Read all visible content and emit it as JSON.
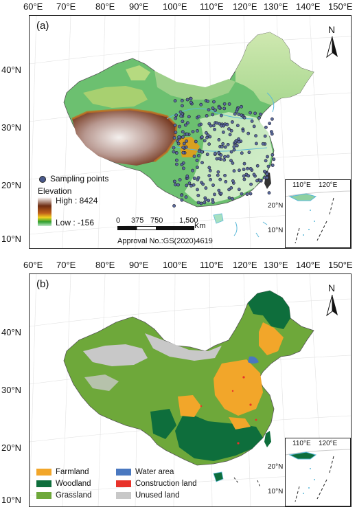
{
  "longitude_labels": [
    "60°E",
    "70°E",
    "80°E",
    "90°E",
    "100°E",
    "110°E",
    "120°E",
    "130°E",
    "140°E",
    "150°E"
  ],
  "latitude_labels": [
    "40°N",
    "30°N",
    "20°N",
    "10°N"
  ],
  "panel_a": {
    "label": "(a)",
    "north_letter": "N",
    "sampling_points_label": "Sampling points",
    "elevation_title": "Elevation",
    "elevation_high": "High : 8424",
    "elevation_low": "Low : -156",
    "scale_ticks": [
      "0",
      "375",
      "750",
      "1,500"
    ],
    "scale_unit": "Km",
    "approval": "Approval No.:GS(2020)4619",
    "inset_lon_labels": [
      "110°E",
      "120°E"
    ],
    "inset_lat_labels": [
      "20°N",
      "10°N"
    ],
    "colors": {
      "high": "#ffffff",
      "mid_high": "#6e2d12",
      "mid": "#d8a020",
      "low_green": "#2f9f2f",
      "lowest": "#bfe8c8",
      "points": "#4a5a8c"
    }
  },
  "panel_b": {
    "label": "(b)",
    "north_letter": "N",
    "inset_lon_labels": [
      "110°E",
      "120°E"
    ],
    "inset_lat_labels": [
      "20°N",
      "10°N"
    ],
    "legend": [
      {
        "label": "Farmland",
        "color": "#f2a62a"
      },
      {
        "label": "Water area",
        "color": "#4a78c0"
      },
      {
        "label": "Woodland",
        "color": "#0e6e3c"
      },
      {
        "label": "Construction land",
        "color": "#e8322a"
      },
      {
        "label": "Grassland",
        "color": "#6ea83a"
      },
      {
        "label": "Unused land",
        "color": "#c8c8c8"
      }
    ]
  }
}
